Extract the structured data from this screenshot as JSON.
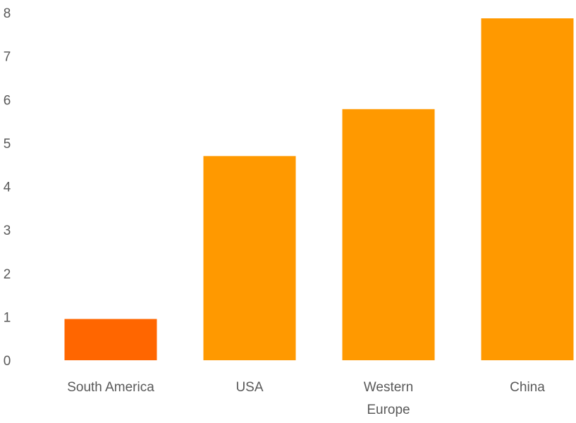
{
  "chart_data": {
    "type": "bar",
    "categories": [
      "South America",
      "USA",
      "Western Europe",
      "China"
    ],
    "category_lines": [
      [
        "South America"
      ],
      [
        "USA"
      ],
      [
        "Western",
        "Europe"
      ],
      [
        "China"
      ]
    ],
    "values": [
      0.95,
      4.7,
      5.78,
      7.87
    ],
    "bar_colors": [
      "#ff6600",
      "#ff9900",
      "#ff9900",
      "#ff9900"
    ],
    "y_ticks": [
      "0",
      "1",
      "2",
      "3",
      "4",
      "5",
      "6",
      "7",
      "8"
    ],
    "ylim": [
      0,
      8
    ],
    "grid": false,
    "title": "",
    "xlabel": "",
    "ylabel": ""
  },
  "colors": {
    "tick_label": "#595959",
    "highlight_bar": "#ff6600",
    "default_bar": "#ff9900"
  }
}
